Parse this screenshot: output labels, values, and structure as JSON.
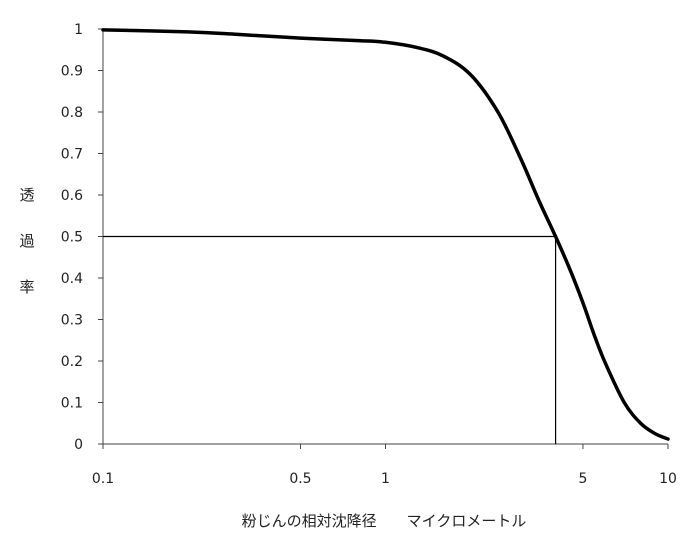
{
  "chart_data": {
    "type": "line",
    "xscale": "log",
    "xlim": [
      0.1,
      10
    ],
    "ylim": [
      0,
      1
    ],
    "grid": false,
    "legend": "none",
    "xlabel": "粉じんの相対沈降径　　マイクロメートル",
    "ylabel": "透過率",
    "ylabel_chars": [
      "透",
      "過",
      "率"
    ],
    "x_ticks": [
      {
        "value": 0.1,
        "label": "0.1"
      },
      {
        "value": 0.5,
        "label": "0.5"
      },
      {
        "value": 1,
        "label": "1"
      },
      {
        "value": 5,
        "label": "5"
      },
      {
        "value": 10,
        "label": "10"
      }
    ],
    "y_ticks": [
      {
        "value": 0,
        "label": "0"
      },
      {
        "value": 0.1,
        "label": "0.1"
      },
      {
        "value": 0.2,
        "label": "0.2"
      },
      {
        "value": 0.3,
        "label": "0.3"
      },
      {
        "value": 0.4,
        "label": "0.4"
      },
      {
        "value": 0.5,
        "label": "0.5"
      },
      {
        "value": 0.6,
        "label": "0.6"
      },
      {
        "value": 0.7,
        "label": "0.7"
      },
      {
        "value": 0.8,
        "label": "0.8"
      },
      {
        "value": 0.9,
        "label": "0.9"
      },
      {
        "value": 1,
        "label": "1"
      }
    ],
    "series": [
      {
        "color": "#000000",
        "points": [
          {
            "x": 0.1,
            "y": 0.998
          },
          {
            "x": 0.2,
            "y": 0.993
          },
          {
            "x": 0.3,
            "y": 0.987
          },
          {
            "x": 0.5,
            "y": 0.978
          },
          {
            "x": 0.8,
            "y": 0.972
          },
          {
            "x": 1.0,
            "y": 0.968
          },
          {
            "x": 1.3,
            "y": 0.955
          },
          {
            "x": 1.6,
            "y": 0.935
          },
          {
            "x": 2.0,
            "y": 0.89
          },
          {
            "x": 2.5,
            "y": 0.8
          },
          {
            "x": 3.0,
            "y": 0.69
          },
          {
            "x": 3.5,
            "y": 0.585
          },
          {
            "x": 4.0,
            "y": 0.5
          },
          {
            "x": 4.5,
            "y": 0.42
          },
          {
            "x": 5.0,
            "y": 0.34
          },
          {
            "x": 5.5,
            "y": 0.26
          },
          {
            "x": 6.0,
            "y": 0.195
          },
          {
            "x": 7.0,
            "y": 0.1
          },
          {
            "x": 8.0,
            "y": 0.05
          },
          {
            "x": 9.0,
            "y": 0.025
          },
          {
            "x": 10.0,
            "y": 0.012
          }
        ]
      }
    ],
    "reference_point": {
      "x": 4.0,
      "y": 0.5
    }
  }
}
